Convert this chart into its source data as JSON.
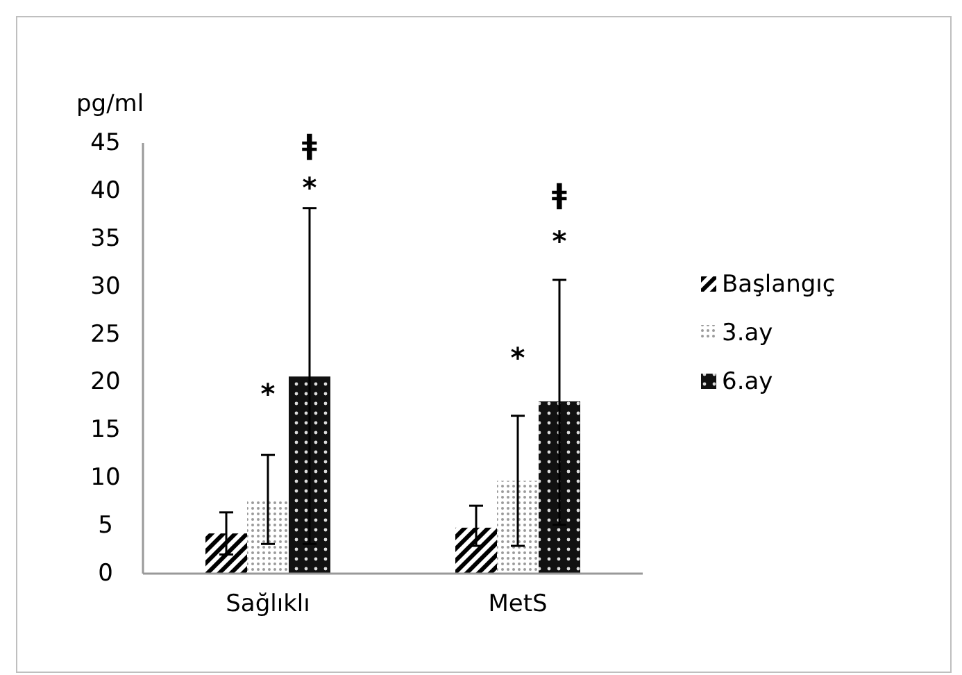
{
  "chart_data": {
    "type": "bar",
    "ylabel": "pg/ml",
    "categories": [
      "Sağlıklı",
      "MetS"
    ],
    "series": [
      {
        "name": "Başlangıç",
        "color": "#000000",
        "values": [
          4.2,
          4.8
        ],
        "errors": [
          [
            2.0,
            6.4
          ],
          [
            2.9,
            7.1
          ]
        ]
      },
      {
        "name": "3.ay",
        "color": "#9a9a9a",
        "values": [
          7.7,
          9.7
        ],
        "errors": [
          [
            3.1,
            12.4
          ],
          [
            2.9,
            16.5
          ]
        ]
      },
      {
        "name": "6.ay",
        "color": "#111111",
        "values": [
          20.6,
          18.0
        ],
        "errors": [
          [
            3.1,
            38.2
          ],
          [
            5.1,
            30.7
          ]
        ]
      }
    ],
    "ylim": [
      0,
      45
    ],
    "yticks": [
      0,
      5,
      10,
      15,
      20,
      25,
      30,
      35,
      40,
      45
    ],
    "grid": false,
    "legend": "right",
    "annotations": [
      "*",
      "*",
      "ǂ",
      "*",
      "*",
      "ǂ"
    ]
  }
}
